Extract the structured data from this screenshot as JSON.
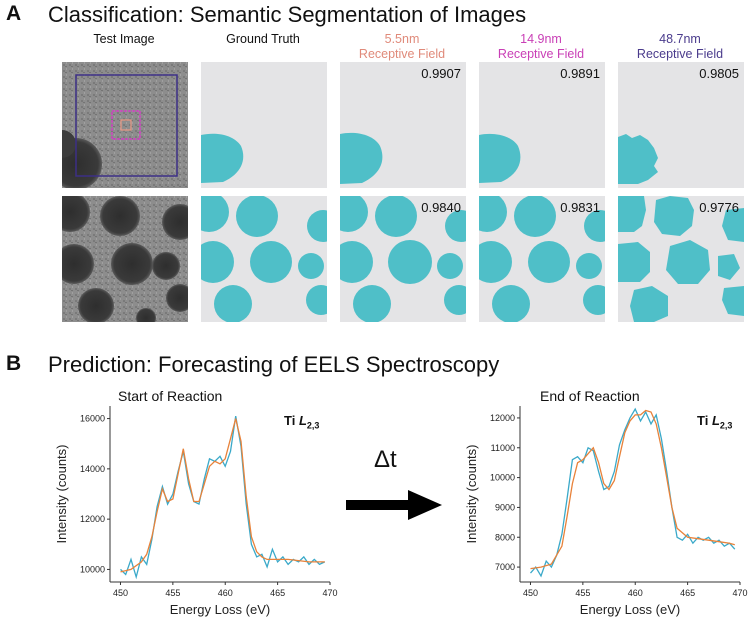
{
  "panel_a": {
    "letter": "A",
    "title": "Classification: Semantic Segmentation of Images",
    "columns": [
      {
        "line1": "",
        "line2": "Test Image",
        "color": "#222222"
      },
      {
        "line1": "",
        "line2": "Ground Truth",
        "color": "#222222"
      },
      {
        "line1": "5.5nm",
        "line2": "Receptive Field",
        "color": "#e08a7a"
      },
      {
        "line1": "14.9nm",
        "line2": "Receptive Field",
        "color": "#c93fb6"
      },
      {
        "line1": "48.7nm",
        "line2": "Receptive Field",
        "color": "#4a3b8c"
      }
    ],
    "scores": {
      "row1": [
        "0.9907",
        "0.9891",
        "0.9805"
      ],
      "row2": [
        "0.9840",
        "0.9831",
        "0.9776"
      ]
    },
    "colors": {
      "segment": "#4fbfc8",
      "tile_bg": "#e4e4e6"
    }
  },
  "panel_b": {
    "letter": "B",
    "title": "Prediction: Forecasting of EELS Spectroscopy",
    "arrow_label": "Δt",
    "left": {
      "title": "Start of Reaction",
      "element": "Ti",
      "edge": "L",
      "edge_sub": "2,3"
    },
    "right": {
      "title": "End of Reaction",
      "element": "Ti",
      "edge": "L",
      "edge_sub": "2,3"
    }
  },
  "chart_data": [
    {
      "type": "line",
      "title": "Start of Reaction",
      "xlabel": "Energy Loss (eV)",
      "ylabel": "Intensity (counts)",
      "xlim": [
        449,
        470
      ],
      "ylim": [
        9500,
        16500
      ],
      "xticks": [
        450,
        455,
        460,
        465,
        470
      ],
      "yticks": [
        10000,
        12000,
        14000,
        16000
      ],
      "annotation": "Ti L2,3",
      "series": [
        {
          "color": "#3aa9c9",
          "x": [
            450,
            450.5,
            451,
            451.5,
            452,
            452.5,
            453,
            453.5,
            454,
            454.5,
            455,
            455.5,
            456,
            456.5,
            457,
            457.5,
            458,
            458.5,
            459,
            459.5,
            460,
            460.5,
            461,
            461.5,
            462,
            462.5,
            463,
            463.5,
            464,
            464.5,
            465,
            465.5,
            466,
            466.5,
            467,
            467.5,
            468,
            468.5,
            469,
            469.5
          ],
          "y": [
            10000,
            9800,
            10400,
            9700,
            10500,
            10200,
            11200,
            12500,
            13300,
            12600,
            13000,
            13900,
            14700,
            13400,
            12700,
            12600,
            13600,
            14400,
            14300,
            14500,
            14100,
            14700,
            16100,
            14900,
            12600,
            11000,
            10500,
            10600,
            10100,
            10800,
            10300,
            10500,
            10200,
            10400,
            10300,
            10500,
            10200,
            10400,
            10200,
            10300
          ]
        },
        {
          "color": "#e8823a",
          "x": [
            450,
            451,
            452,
            452.5,
            453,
            453.5,
            454,
            454.5,
            455,
            455.5,
            456,
            456.5,
            457,
            457.5,
            458,
            458.5,
            459,
            459.5,
            460,
            460.5,
            461,
            461.5,
            462,
            462.5,
            463,
            463.5,
            464,
            465,
            466,
            467,
            468,
            469,
            469.5
          ],
          "y": [
            9900,
            10000,
            10300,
            10600,
            11300,
            12300,
            13200,
            12700,
            12800,
            13800,
            14800,
            13600,
            12700,
            12700,
            13400,
            14100,
            14300,
            14200,
            14400,
            15200,
            16000,
            15100,
            12900,
            11300,
            10700,
            10500,
            10400,
            10400,
            10400,
            10350,
            10300,
            10300,
            10300
          ]
        }
      ]
    },
    {
      "type": "line",
      "title": "End of Reaction",
      "xlabel": "Energy Loss (eV)",
      "ylabel": "Intensity (counts)",
      "xlim": [
        449,
        470
      ],
      "ylim": [
        6500,
        12400
      ],
      "xticks": [
        450,
        455,
        460,
        465,
        470
      ],
      "yticks": [
        7000,
        8000,
        9000,
        10000,
        11000,
        12000
      ],
      "annotation": "Ti L2,3",
      "series": [
        {
          "color": "#3aa9c9",
          "x": [
            450,
            450.5,
            451,
            451.5,
            452,
            452.5,
            453,
            453.5,
            454,
            454.5,
            455,
            455.5,
            456,
            456.5,
            457,
            457.5,
            458,
            458.5,
            459,
            459.5,
            460,
            460.5,
            461,
            461.5,
            462,
            462.5,
            463,
            463.5,
            464,
            464.5,
            465,
            465.5,
            466,
            466.5,
            467,
            467.5,
            468,
            468.5,
            469,
            469.5
          ],
          "y": [
            6800,
            7000,
            6700,
            7200,
            7000,
            7400,
            8100,
            9300,
            10600,
            10700,
            10500,
            11000,
            10900,
            10200,
            9600,
            9700,
            10200,
            11100,
            11600,
            12000,
            12300,
            11900,
            12200,
            11800,
            12100,
            11300,
            10200,
            9000,
            8000,
            7900,
            8100,
            7800,
            8000,
            7900,
            8000,
            7800,
            7900,
            7700,
            7800,
            7600
          ]
        },
        {
          "color": "#e8823a",
          "x": [
            450,
            451,
            452,
            453,
            453.5,
            454,
            454.5,
            455,
            455.5,
            456,
            456.5,
            457,
            457.5,
            458,
            458.5,
            459,
            459.5,
            460,
            460.5,
            461,
            461.5,
            462,
            462.5,
            463,
            463.5,
            464,
            465,
            466,
            467,
            468,
            469,
            469.5
          ],
          "y": [
            6950,
            7000,
            7100,
            7700,
            8700,
            9800,
            10500,
            10600,
            10800,
            11000,
            10500,
            9800,
            9600,
            9900,
            10700,
            11500,
            11900,
            12100,
            12100,
            12250,
            12200,
            11800,
            11000,
            10000,
            9000,
            8300,
            8000,
            7950,
            7900,
            7850,
            7800,
            7750
          ]
        }
      ]
    }
  ]
}
